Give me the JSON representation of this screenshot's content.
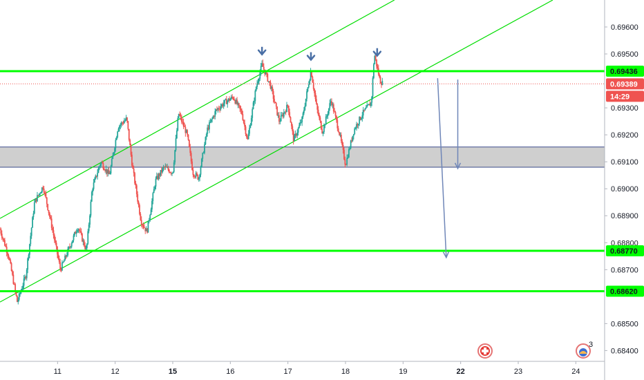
{
  "chart_data": {
    "type": "candlestick",
    "title": "",
    "xlabel": "",
    "ylabel": "",
    "ylim": [
      0.6836,
      0.697
    ],
    "x_ticks": [
      {
        "label": "11",
        "x": 11
      },
      {
        "label": "12",
        "x": 12
      },
      {
        "label": "15",
        "x": 13
      },
      {
        "label": "16",
        "x": 14
      },
      {
        "label": "17",
        "x": 15
      },
      {
        "label": "18",
        "x": 16
      },
      {
        "label": "19",
        "x": 17
      },
      {
        "label": "22",
        "x": 18
      },
      {
        "label": "23",
        "x": 19
      },
      {
        "label": "24",
        "x": 20
      }
    ],
    "bold_x_ticks": [
      "15",
      "22"
    ],
    "y_ticks": [
      "0.69600",
      "0.69500",
      "0.69300",
      "0.69200",
      "0.69100",
      "0.69000",
      "0.68900",
      "0.68800",
      "0.68700",
      "0.68500",
      "0.68400"
    ],
    "price_path": [
      [
        10.0,
        0.6885
      ],
      [
        10.15,
        0.6875
      ],
      [
        10.3,
        0.6858
      ],
      [
        10.45,
        0.6868
      ],
      [
        10.6,
        0.6895
      ],
      [
        10.75,
        0.6901
      ],
      [
        10.9,
        0.6886
      ],
      [
        11.05,
        0.687
      ],
      [
        11.2,
        0.6878
      ],
      [
        11.35,
        0.6886
      ],
      [
        11.5,
        0.6877
      ],
      [
        11.6,
        0.69
      ],
      [
        11.75,
        0.691
      ],
      [
        11.9,
        0.6905
      ],
      [
        12.05,
        0.6923
      ],
      [
        12.2,
        0.6926
      ],
      [
        12.3,
        0.6908
      ],
      [
        12.45,
        0.6888
      ],
      [
        12.55,
        0.6884
      ],
      [
        12.7,
        0.6903
      ],
      [
        12.85,
        0.6908
      ],
      [
        13.0,
        0.6906
      ],
      [
        13.1,
        0.6928
      ],
      [
        13.25,
        0.692
      ],
      [
        13.35,
        0.6906
      ],
      [
        13.45,
        0.6904
      ],
      [
        13.6,
        0.6922
      ],
      [
        13.75,
        0.6929
      ],
      [
        13.9,
        0.6932
      ],
      [
        14.05,
        0.6934
      ],
      [
        14.2,
        0.6928
      ],
      [
        14.3,
        0.6918
      ],
      [
        14.45,
        0.6938
      ],
      [
        14.55,
        0.6946
      ],
      [
        14.7,
        0.6938
      ],
      [
        14.85,
        0.6925
      ],
      [
        15.0,
        0.6931
      ],
      [
        15.1,
        0.6918
      ],
      [
        15.25,
        0.6926
      ],
      [
        15.4,
        0.6944
      ],
      [
        15.5,
        0.693
      ],
      [
        15.6,
        0.6921
      ],
      [
        15.75,
        0.6933
      ],
      [
        15.9,
        0.692
      ],
      [
        16.0,
        0.6909
      ],
      [
        16.15,
        0.6922
      ],
      [
        16.3,
        0.6928
      ],
      [
        16.45,
        0.6932
      ],
      [
        16.5,
        0.695
      ],
      [
        16.6,
        0.694
      ],
      [
        16.65,
        0.6939
      ]
    ],
    "current_price": "0.69389",
    "current_price_value": 0.69389,
    "countdown": "14:29",
    "horizontal_levels": [
      {
        "label": "0.69436",
        "value": 0.69436
      },
      {
        "label": "0.68770",
        "value": 0.6877
      },
      {
        "label": "0.68620",
        "value": 0.6862
      }
    ],
    "zone": {
      "from": 0.6908,
      "to": 0.69155
    },
    "channel": [
      {
        "x1": 10.0,
        "y1": 0.6889,
        "x2": 16.85,
        "y2": 0.697
      },
      {
        "x1": 10.0,
        "y1": 0.6858,
        "x2": 19.6,
        "y2": 0.697
      }
    ],
    "peak_markers": [
      {
        "x": 14.55,
        "value": 0.6947
      },
      {
        "x": 15.4,
        "value": 0.6945
      },
      {
        "x": 16.55,
        "value": 0.69465
      }
    ],
    "projection_arrows": [
      {
        "x1": 17.6,
        "y1": 0.6941,
        "x2": 17.75,
        "y2": 0.68745
      },
      {
        "x1": 17.95,
        "y1": 0.69405,
        "x2": 17.95,
        "y2": 0.69075
      }
    ],
    "colors": {
      "up": "#26a69a",
      "down": "#ef5350",
      "level": "#00ff00",
      "channel": "#00dd00",
      "zone_fill": "#cfcfcf",
      "zone_border": "#3a4a8a",
      "arrow": "#6f86b8",
      "marker": "#4a6fa5",
      "price_line": "#ef5350"
    }
  },
  "ui": {
    "bottom_icons": [
      "lifebuoy-icon",
      "alert-badge-icon"
    ],
    "alert_count": "3"
  }
}
